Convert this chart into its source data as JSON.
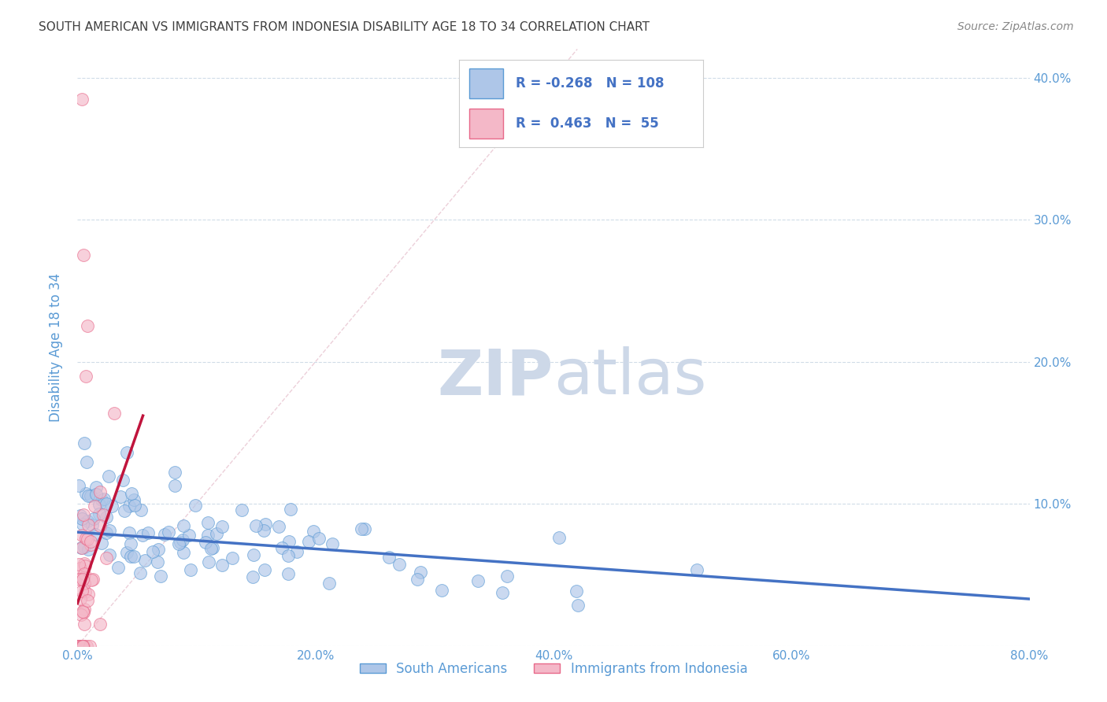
{
  "title": "SOUTH AMERICAN VS IMMIGRANTS FROM INDONESIA DISABILITY AGE 18 TO 34 CORRELATION CHART",
  "source": "Source: ZipAtlas.com",
  "ylabel": "Disability Age 18 to 34",
  "xlim": [
    0.0,
    0.8
  ],
  "ylim": [
    0.0,
    0.42
  ],
  "xticks": [
    0.0,
    0.1,
    0.2,
    0.3,
    0.4,
    0.5,
    0.6,
    0.7,
    0.8
  ],
  "yticks": [
    0.0,
    0.1,
    0.2,
    0.3,
    0.4
  ],
  "ytick_labels": [
    "",
    "10.0%",
    "20.0%",
    "30.0%",
    "40.0%"
  ],
  "xtick_labels": [
    "0.0%",
    "",
    "20.0%",
    "",
    "40.0%",
    "",
    "60.0%",
    "",
    "80.0%"
  ],
  "blue_R": -0.268,
  "blue_N": 108,
  "pink_R": 0.463,
  "pink_N": 55,
  "blue_color": "#aec6e8",
  "blue_edge_color": "#5b9bd5",
  "pink_color": "#f4b8c8",
  "pink_edge_color": "#e8698a",
  "blue_line_color": "#4472c4",
  "pink_line_color": "#c0143c",
  "legend_text_color": "#4472c4",
  "axis_color": "#5b9bd5",
  "grid_color": "#d0dce8",
  "title_color": "#404040",
  "watermark_color": "#cdd8e8",
  "background_color": "#ffffff"
}
